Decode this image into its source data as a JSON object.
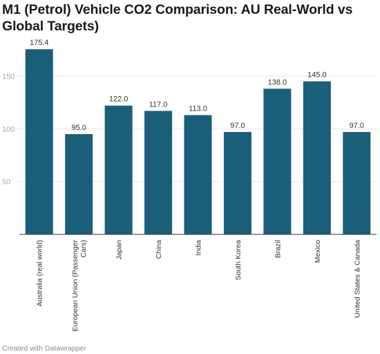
{
  "title": "M1 (Petrol) Vehicle CO2 Comparison: AU Real-World vs Global Targets)",
  "footer": "Created with Datawrapper",
  "colors": {
    "bar": "#1a5f7a",
    "grid": "#e6e6e6",
    "tick_text": "#aaaaaa",
    "label_text": "#333333"
  },
  "chart_data": {
    "type": "bar",
    "title": "M1 (Petrol) Vehicle CO2 Comparison: AU Real-World vs Global Targets)",
    "xlabel": "",
    "ylabel": "",
    "ylim": [
      0,
      190
    ],
    "yticks": [
      50,
      100,
      150
    ],
    "grid": true,
    "categories": [
      "Australia (real world)",
      "European Union (Passenger Cars)",
      "Japan",
      "China",
      "India",
      "South Korea",
      "Brazil",
      "Mexico",
      "United States & Canada"
    ],
    "values": [
      175.4,
      95.0,
      122.0,
      117.0,
      113.0,
      97.0,
      138.0,
      145.0,
      97.0
    ],
    "value_labels": [
      "175.4",
      "95.0",
      "122.0",
      "117.0",
      "113.0",
      "97.0",
      "138.0",
      "145.0",
      "97.0"
    ]
  }
}
